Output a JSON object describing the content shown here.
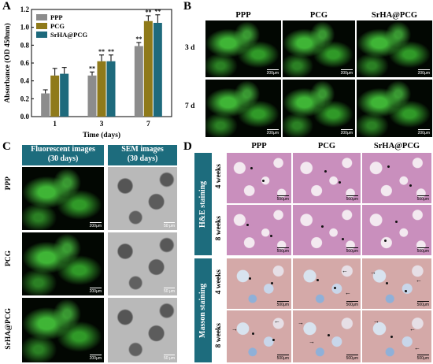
{
  "panels": {
    "A": "A",
    "B": "B",
    "C": "C",
    "D": "D"
  },
  "chart_data": {
    "type": "bar",
    "categories": [
      "1",
      "3",
      "7"
    ],
    "series": [
      {
        "name": "PPP",
        "values": [
          0.26,
          0.46,
          0.79
        ],
        "errors": [
          0.04,
          0.04,
          0.04
        ],
        "color": "#8c8c8c"
      },
      {
        "name": "PCG",
        "values": [
          0.46,
          0.62,
          1.07
        ],
        "errors": [
          0.08,
          0.07,
          0.06
        ],
        "color": "#8f7a1a"
      },
      {
        "name": "SrHA@PCG",
        "values": [
          0.48,
          0.62,
          1.05
        ],
        "errors": [
          0.07,
          0.07,
          0.09
        ],
        "color": "#1e6a7c"
      }
    ],
    "significance": [
      [
        "",
        "**",
        "**"
      ],
      [
        "",
        "**",
        "**"
      ],
      [
        "",
        "**",
        "**"
      ]
    ],
    "xlabel": "Time (days)",
    "ylabel": "Absorbance (OD 450nm)",
    "ylim": [
      0.0,
      1.2
    ],
    "yticks": [
      "0.0",
      "0.2",
      "0.4",
      "0.6",
      "0.8",
      "1.0",
      "1.2"
    ],
    "legend_position": "top-left"
  },
  "panelB": {
    "cols": [
      "PPP",
      "PCG",
      "SrHA@PCG"
    ],
    "rows": [
      "3 d",
      "7 d"
    ],
    "scale": "200μm"
  },
  "panelC": {
    "col1": "Fluorescent images (30 days)",
    "col1_line1": "Fluorescent images",
    "col1_line2": "(30 days)",
    "col2_line1": "SEM images",
    "col2_line2": "(30 days)",
    "rows": [
      "PPP",
      "PCG",
      "SrHA@PCG"
    ],
    "scale_fluo": "200μm",
    "scale_sem": "50 μm"
  },
  "panelD": {
    "cols": [
      "PPP",
      "PCG",
      "SrHA@PCG"
    ],
    "groups": [
      "H&E staining",
      "Masson staining"
    ],
    "rows": [
      "4 weeks",
      "8 weeks"
    ],
    "scale": "500μm"
  }
}
